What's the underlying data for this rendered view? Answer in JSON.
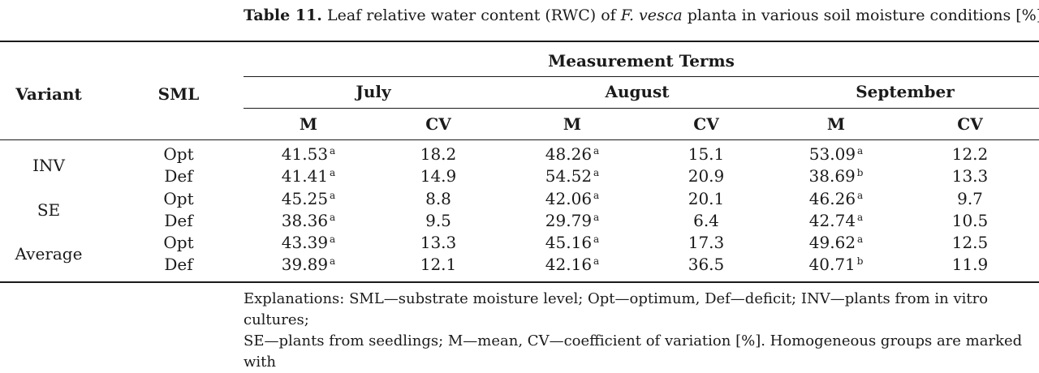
{
  "caption": {
    "label": "Table 11.",
    "text_before": "Leaf relative water content (RWC) of ",
    "species": "F. vesca",
    "text_after": " planta in various soil moisture conditions [%]."
  },
  "header": {
    "variant": "Variant",
    "sml": "SML",
    "measurement_terms": "Measurement Terms",
    "months": [
      "July",
      "August",
      "September"
    ],
    "m": "M",
    "cv": "CV"
  },
  "groups": [
    {
      "variant": "INV",
      "rows": [
        {
          "sml": "Opt",
          "july_m": "41.53",
          "july_m_sup": "a",
          "july_cv": "18.2",
          "aug_m": "48.26",
          "aug_m_sup": "a",
          "aug_cv": "15.1",
          "sep_m": "53.09",
          "sep_m_sup": "a",
          "sep_cv": "12.2"
        },
        {
          "sml": "Def",
          "july_m": "41.41",
          "july_m_sup": "a",
          "july_cv": "14.9",
          "aug_m": "54.52",
          "aug_m_sup": "a",
          "aug_cv": "20.9",
          "sep_m": "38.69",
          "sep_m_sup": "b",
          "sep_cv": "13.3"
        }
      ]
    },
    {
      "variant": "SE",
      "rows": [
        {
          "sml": "Opt",
          "july_m": "45.25",
          "july_m_sup": "a",
          "july_cv": "8.8",
          "aug_m": "42.06",
          "aug_m_sup": "a",
          "aug_cv": "20.1",
          "sep_m": "46.26",
          "sep_m_sup": "a",
          "sep_cv": "9.7"
        },
        {
          "sml": "Def",
          "july_m": "38.36",
          "july_m_sup": "a",
          "july_cv": "9.5",
          "aug_m": "29.79",
          "aug_m_sup": "a",
          "aug_cv": "6.4",
          "sep_m": "42.74",
          "sep_m_sup": "a",
          "sep_cv": "10.5"
        }
      ]
    },
    {
      "variant": "Average",
      "rows": [
        {
          "sml": "Opt",
          "july_m": "43.39",
          "july_m_sup": "a",
          "july_cv": "13.3",
          "aug_m": "45.16",
          "aug_m_sup": "a",
          "aug_cv": "17.3",
          "sep_m": "49.62",
          "sep_m_sup": "a",
          "sep_cv": "12.5"
        },
        {
          "sml": "Def",
          "july_m": "39.89",
          "july_m_sup": "a",
          "july_cv": "12.1",
          "aug_m": "42.16",
          "aug_m_sup": "a",
          "aug_cv": "36.5",
          "sep_m": "40.71",
          "sep_m_sup": "b",
          "sep_cv": "11.9"
        }
      ]
    }
  ],
  "note": {
    "line1": "Explanations: SML—substrate moisture level; Opt—optimum, Def—deficit; INV—plants from in vitro cultures;",
    "line2": "SE—plants from seedlings; M—mean, CV—coefficient of variation [%]. Homogeneous groups are marked with"
  }
}
